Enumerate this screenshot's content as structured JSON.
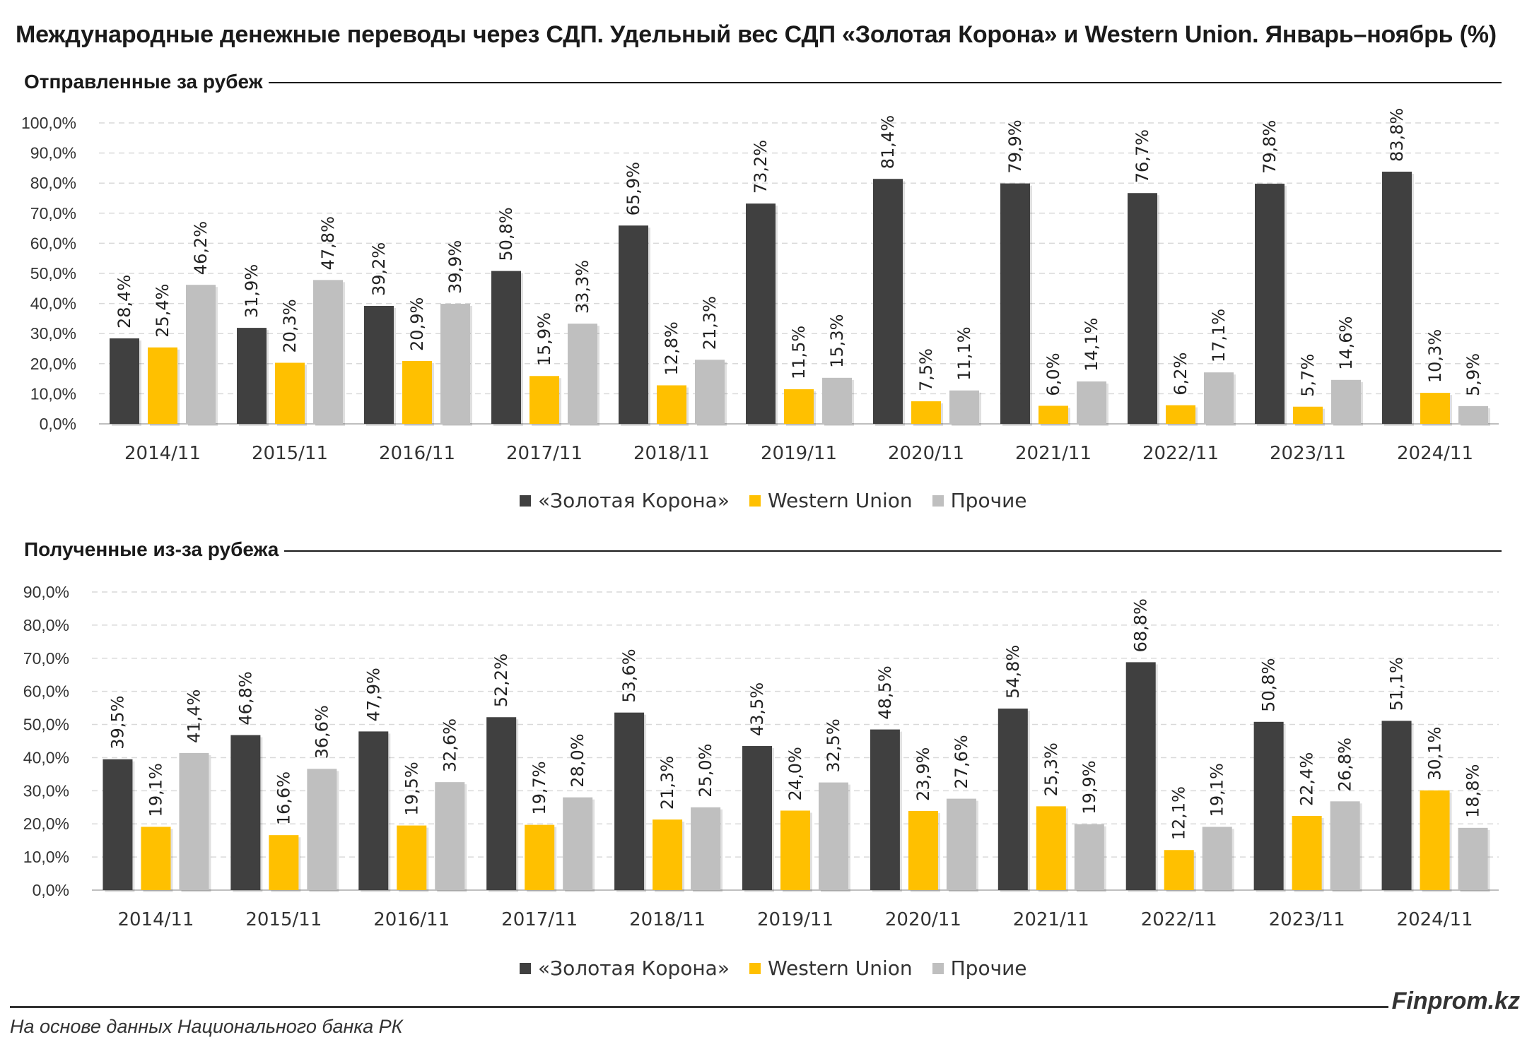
{
  "title": "Международные денежные переводы через СДП. Удельный вес СДП «Золотая Корона» и Western Union. Январь–ноябрь (%)",
  "sections": [
    {
      "title": "Отправленные за рубеж"
    },
    {
      "title": "Полученные из-за рубежа"
    }
  ],
  "legend": {
    "items": [
      "«Золотая Корона»",
      "Western Union",
      "Прочие"
    ]
  },
  "colors": {
    "zolotaya_korona": "#404040",
    "western_union": "#ffc000",
    "prochie": "#bfbfbf",
    "grid": "#d9d9d9"
  },
  "footer": {
    "brand": "Finprom.kz",
    "source": "На основе данных Национального банка РК"
  },
  "chart_data": [
    {
      "type": "bar",
      "title": "Отправленные за рубеж",
      "categories": [
        "2014/11",
        "2015/11",
        "2016/11",
        "2017/11",
        "2018/11",
        "2019/11",
        "2020/11",
        "2021/11",
        "2022/11",
        "2023/11",
        "2024/11"
      ],
      "series": [
        {
          "name": "«Золотая Корона»",
          "values": [
            28.4,
            31.9,
            39.2,
            50.8,
            65.9,
            73.2,
            81.4,
            79.9,
            76.7,
            79.8,
            83.8
          ],
          "labels": [
            "28,4%",
            "31,9%",
            "39,2%",
            "50,8%",
            "65,9%",
            "73,2%",
            "81,4%",
            "79,9%",
            "76,7%",
            "79,8%",
            "83,8%"
          ]
        },
        {
          "name": "Western Union",
          "values": [
            25.4,
            20.3,
            20.9,
            15.9,
            12.8,
            11.5,
            7.5,
            6.0,
            6.2,
            5.7,
            10.3
          ],
          "labels": [
            "25,4%",
            "20,3%",
            "20,9%",
            "15,9%",
            "12,8%",
            "11,5%",
            "7,5%",
            "6,0%",
            "6,2%",
            "5,7%",
            "10,3%"
          ]
        },
        {
          "name": "Прочие",
          "values": [
            46.2,
            47.8,
            39.9,
            33.3,
            21.3,
            15.3,
            11.1,
            14.1,
            17.1,
            14.6,
            5.9
          ],
          "labels": [
            "46,2%",
            "47,8%",
            "39,9%",
            "33,3%",
            "21,3%",
            "15,3%",
            "11,1%",
            "14,1%",
            "17,1%",
            "14,6%",
            "5,9%"
          ]
        }
      ],
      "ylim": [
        0,
        100
      ],
      "yticks": [
        "0,0%",
        "10,0%",
        "20,0%",
        "30,0%",
        "40,0%",
        "50,0%",
        "60,0%",
        "70,0%",
        "80,0%",
        "90,0%",
        "100,0%"
      ],
      "grid": true,
      "legend_position": "bottom"
    },
    {
      "type": "bar",
      "title": "Полученные из-за рубежа",
      "categories": [
        "2014/11",
        "2015/11",
        "2016/11",
        "2017/11",
        "2018/11",
        "2019/11",
        "2020/11",
        "2021/11",
        "2022/11",
        "2023/11",
        "2024/11"
      ],
      "series": [
        {
          "name": "«Золотая Корона»",
          "values": [
            39.5,
            46.8,
            47.9,
            52.2,
            53.6,
            43.5,
            48.5,
            54.8,
            68.8,
            50.8,
            51.1
          ],
          "labels": [
            "39,5%",
            "46,8%",
            "47,9%",
            "52,2%",
            "53,6%",
            "43,5%",
            "48,5%",
            "54,8%",
            "68,8%",
            "50,8%",
            "51,1%"
          ]
        },
        {
          "name": "Western Union",
          "values": [
            19.1,
            16.6,
            19.5,
            19.7,
            21.3,
            24.0,
            23.9,
            25.3,
            12.1,
            22.4,
            30.1
          ],
          "labels": [
            "19,1%",
            "16,6%",
            "19,5%",
            "19,7%",
            "21,3%",
            "24,0%",
            "23,9%",
            "25,3%",
            "12,1%",
            "22,4%",
            "30,1%"
          ]
        },
        {
          "name": "Прочие",
          "values": [
            41.4,
            36.6,
            32.6,
            28.0,
            25.0,
            32.5,
            27.6,
            19.9,
            19.1,
            26.8,
            18.8
          ],
          "labels": [
            "41,4%",
            "36,6%",
            "32,6%",
            "28,0%",
            "25,0%",
            "32,5%",
            "27,6%",
            "19,9%",
            "19,1%",
            "26,8%",
            "18,8%"
          ]
        }
      ],
      "ylim": [
        0,
        90
      ],
      "yticks": [
        "0,0%",
        "10,0%",
        "20,0%",
        "30,0%",
        "40,0%",
        "50,0%",
        "60,0%",
        "70,0%",
        "80,0%",
        "90,0%"
      ],
      "grid": true,
      "legend_position": "bottom"
    }
  ]
}
